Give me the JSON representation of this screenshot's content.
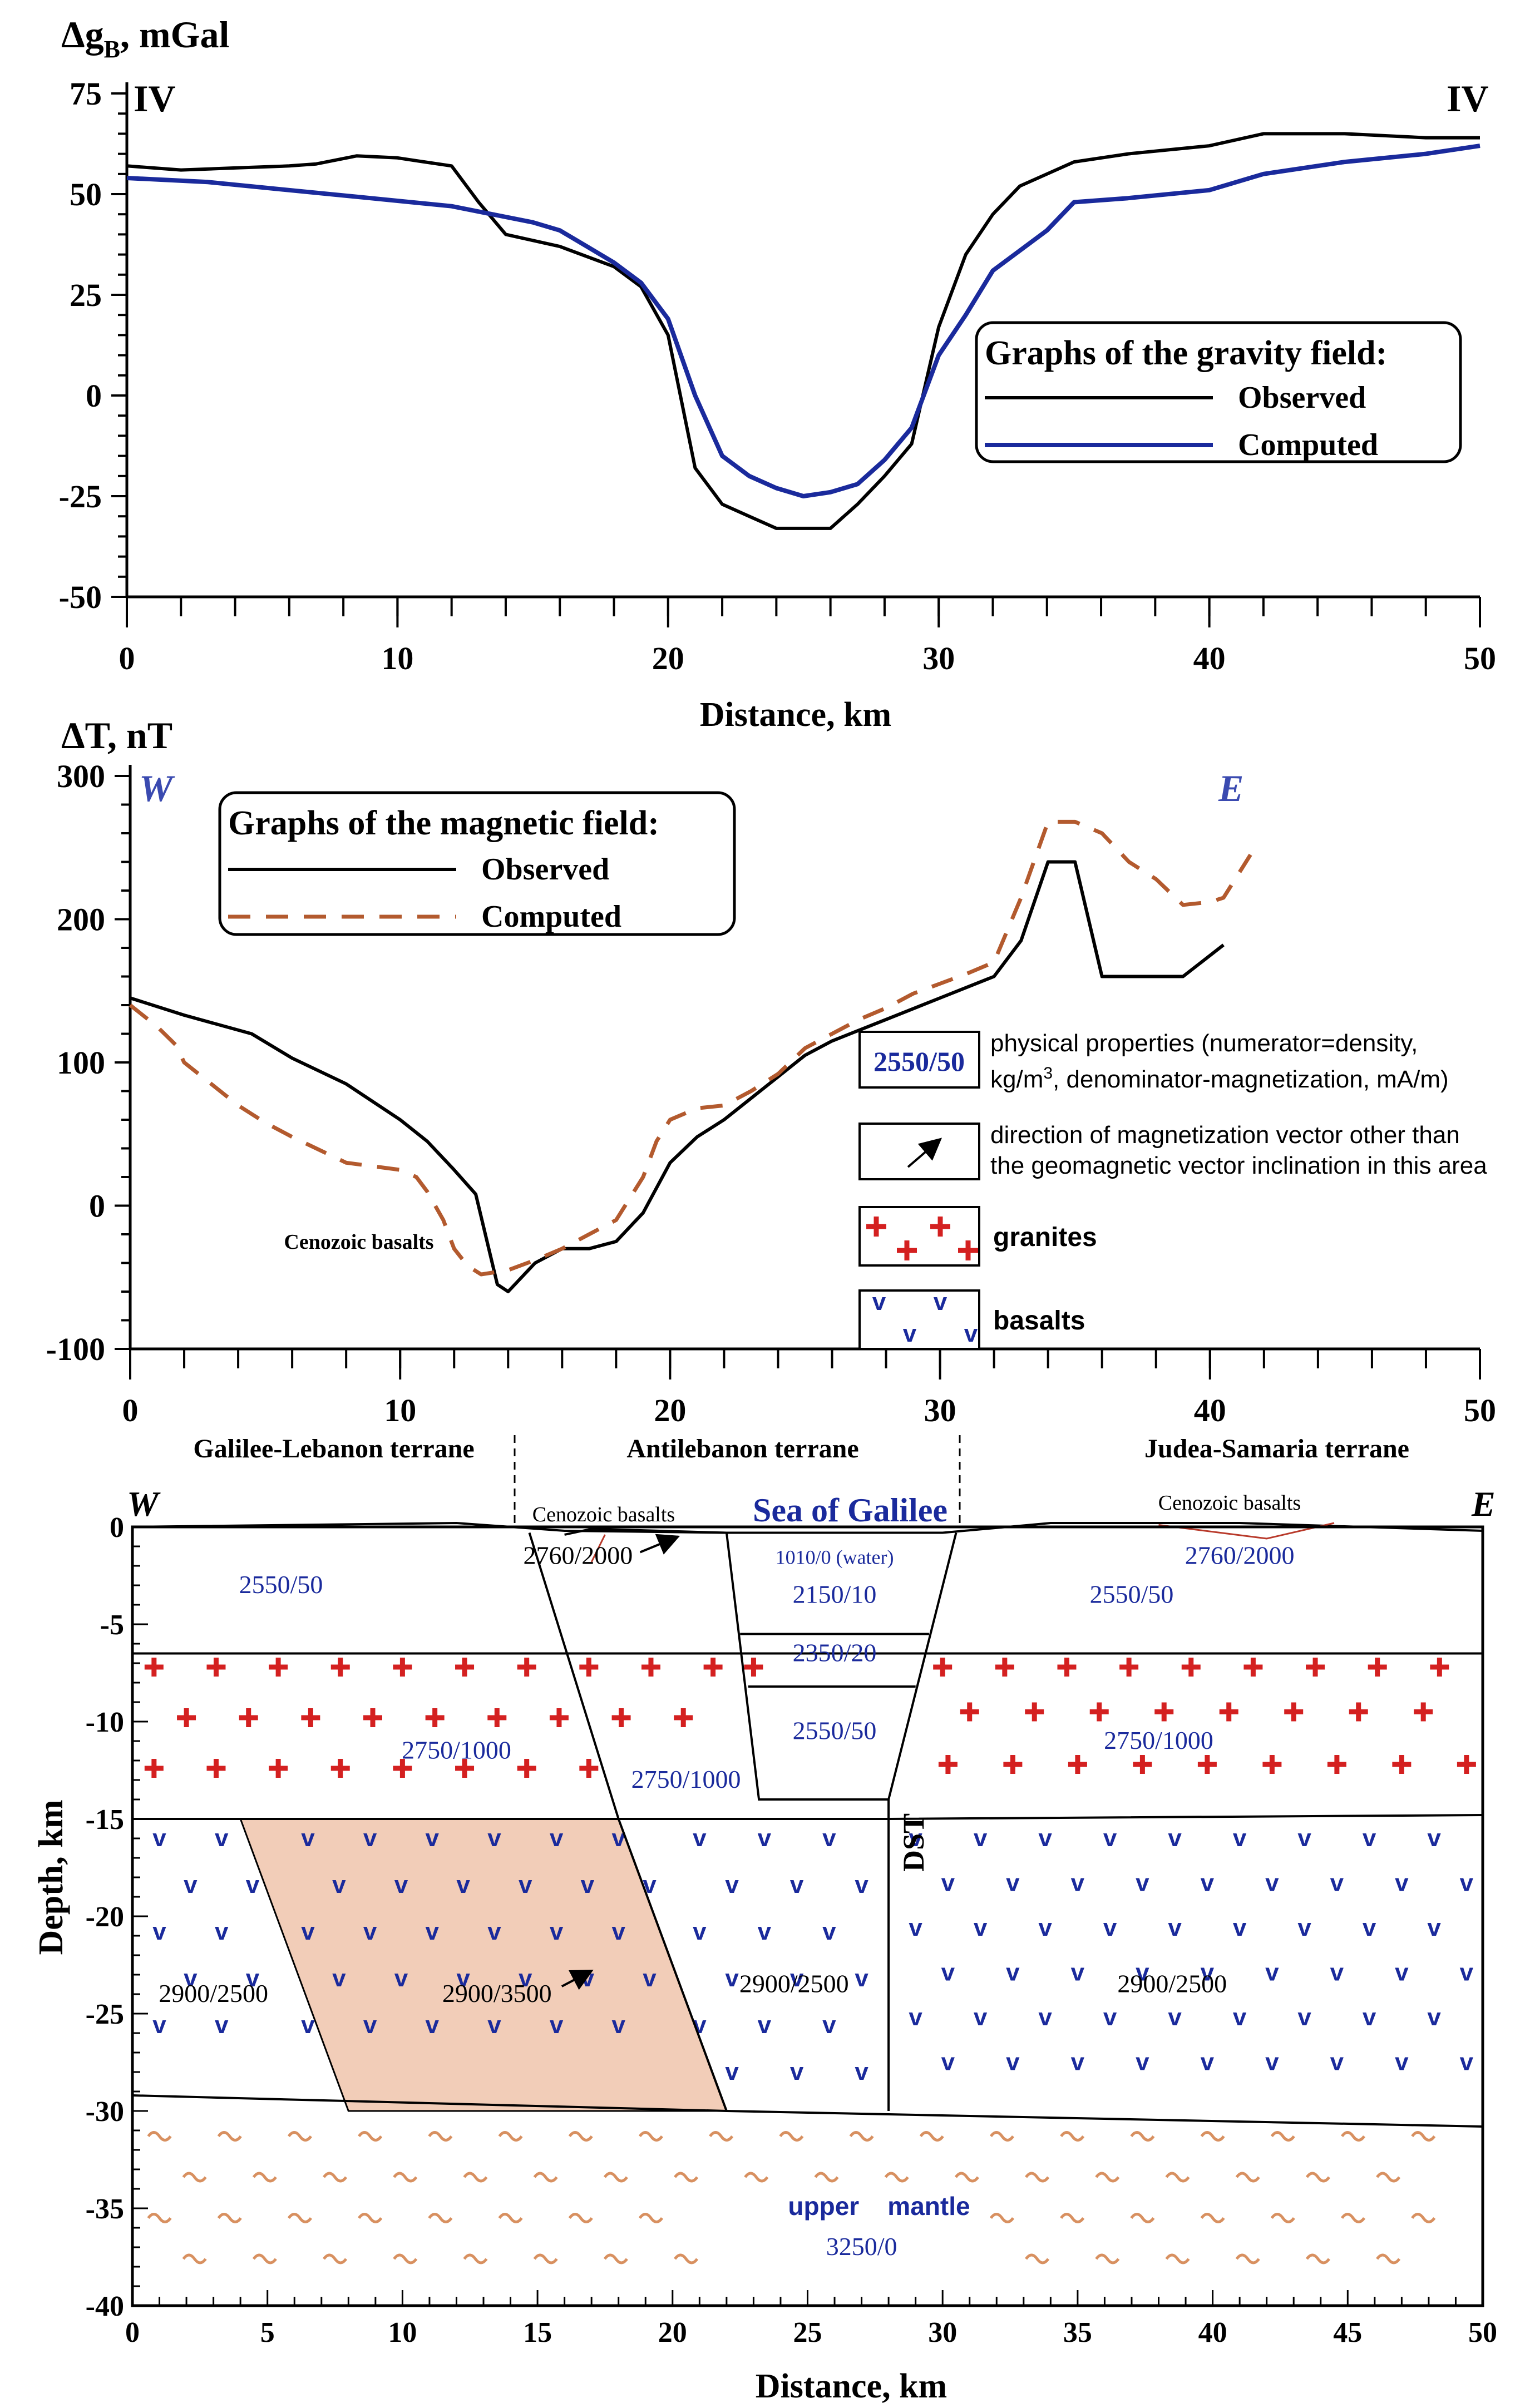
{
  "chart_data": [
    {
      "type": "line",
      "ylabel_main": "Δg",
      "ylabel_sub": "B",
      "ylabel_rest": ", mGal",
      "xlabel": "Distance, km",
      "corner_left": "IV",
      "corner_right": "IV",
      "xlim": [
        0,
        50
      ],
      "ylim": [
        -50,
        75
      ],
      "xticks": [
        0,
        10,
        20,
        30,
        40,
        50
      ],
      "yticks": [
        75,
        50,
        25,
        0,
        -25,
        -50
      ],
      "legend_title": "Graphs of the gravity field:",
      "legend_position": "right-middle",
      "series": [
        {
          "name": "Observed",
          "color": "#000000",
          "x": [
            0,
            2,
            4,
            6,
            7,
            8.5,
            10,
            11,
            12,
            13,
            14,
            16,
            18,
            19,
            20,
            21,
            22,
            23,
            24,
            25,
            26,
            27,
            28,
            29,
            30,
            31,
            32,
            33,
            35,
            37,
            40,
            42,
            45,
            48,
            50
          ],
          "y": [
            57,
            56,
            56.5,
            57,
            57.5,
            59.5,
            59,
            58,
            57,
            48,
            40,
            37,
            32,
            27,
            15,
            -18,
            -27,
            -30,
            -33,
            -33,
            -33,
            -27,
            -20,
            -12,
            17,
            35,
            45,
            52,
            58,
            60,
            62,
            65,
            65,
            64,
            64
          ]
        },
        {
          "name": "Computed",
          "color": "#1a2a9c",
          "x": [
            0,
            3,
            6,
            9,
            12,
            15,
            16,
            17,
            18,
            19,
            20,
            21,
            22,
            23,
            24,
            25,
            26,
            27,
            28,
            29,
            30,
            31,
            32,
            33,
            34,
            35,
            37,
            40,
            42,
            45,
            48,
            50
          ],
          "y": [
            54,
            53,
            51,
            49,
            47,
            43,
            41,
            37,
            33,
            28,
            19,
            0,
            -15,
            -20,
            -23,
            -25,
            -24,
            -22,
            -16,
            -8,
            10,
            20,
            31,
            36,
            41,
            48,
            49,
            51,
            55,
            58,
            60,
            62
          ]
        }
      ]
    },
    {
      "type": "line",
      "ylabel": "ΔT, nT",
      "xlabel": "",
      "corner_left": "W",
      "corner_right": "E",
      "xlim": [
        0,
        50
      ],
      "ylim": [
        -100,
        300
      ],
      "xticks": [
        0,
        10,
        20,
        30,
        40,
        50
      ],
      "yticks": [
        300,
        200,
        100,
        0,
        -100
      ],
      "legend_title": "Graphs of the magnetic field:",
      "legend_position": "top-left",
      "annotation": "Cenozoic basalts",
      "series": [
        {
          "name": "Observed",
          "color": "#000000",
          "x": [
            0,
            2,
            4.5,
            6,
            8,
            10,
            11,
            12,
            12.8,
            13.6,
            14,
            15,
            16,
            17,
            18,
            19,
            20,
            21,
            22,
            23,
            24,
            25,
            26,
            28,
            30,
            32,
            33,
            34,
            35,
            36,
            37,
            39,
            40.5
          ],
          "y": [
            145,
            133,
            120,
            103,
            85,
            60,
            45,
            25,
            8,
            -55,
            -60,
            -40,
            -30,
            -30,
            -25,
            -5,
            30,
            48,
            60,
            75,
            90,
            105,
            115,
            130,
            145,
            160,
            185,
            240,
            240,
            160,
            160,
            160,
            182
          ]
        },
        {
          "name": "Computed",
          "color": "#b35a2e",
          "x": [
            0,
            1,
            1.7,
            2,
            3,
            4,
            5,
            6,
            8,
            10,
            10.6,
            11,
            11.6,
            12,
            12.5,
            13,
            14,
            15,
            16,
            17,
            18,
            19,
            19.5,
            20,
            21,
            22,
            23,
            24,
            25,
            26,
            27,
            28,
            29,
            30,
            31,
            32,
            33,
            34,
            35,
            36,
            37,
            38,
            39,
            40,
            40.5,
            41.5
          ],
          "y": [
            140,
            125,
            112,
            100,
            85,
            70,
            58,
            48,
            30,
            25,
            20,
            10,
            -10,
            -30,
            -42,
            -48,
            -45,
            -38,
            -30,
            -20,
            -10,
            20,
            45,
            60,
            68,
            70,
            80,
            92,
            110,
            120,
            130,
            138,
            148,
            155,
            162,
            170,
            215,
            268,
            268,
            260,
            240,
            228,
            210,
            212,
            215,
            245
          ]
        }
      ]
    },
    {
      "type": "table",
      "chart_kind": "geological cross-section",
      "ylabel": "Depth, km",
      "xlabel": "Distance, km",
      "xlim": [
        0,
        50
      ],
      "ylim": [
        -40,
        0
      ],
      "xticks": [
        0,
        5,
        10,
        15,
        20,
        25,
        30,
        35,
        40,
        45,
        50
      ],
      "yticks": [
        0,
        -5,
        -10,
        -15,
        -20,
        -25,
        -30,
        -35,
        -40
      ],
      "corner_left": "W",
      "corner_right": "E",
      "terranes": [
        "Galilee-Lebanon terrane",
        "Antilebanon terrane",
        "Judea-Samaria terrane"
      ],
      "labels": {
        "sea": "Sea of Galilee",
        "basalts_left": "Cenozoic basalts",
        "basalts_right": "Cenozoic basalts",
        "dst": "DST",
        "mantle": "upper    mantle"
      },
      "bodies": [
        {
          "label": "2550/50",
          "x": 5.5,
          "y": -3,
          "color": "#1a2a9c"
        },
        {
          "label": "2760/2000",
          "x": 16.5,
          "y": -1.5,
          "color": "#000000"
        },
        {
          "label": "1010/0 (water)",
          "x": 26,
          "y": -1.5,
          "color": "#1a2a9c"
        },
        {
          "label": "2150/10",
          "x": 26,
          "y": -3.5,
          "color": "#1a2a9c"
        },
        {
          "label": "2350/20",
          "x": 26,
          "y": -6.5,
          "color": "#1a2a9c"
        },
        {
          "label": "2550/50",
          "x": 26,
          "y": -10.5,
          "color": "#1a2a9c"
        },
        {
          "label": "2550/50",
          "x": 37,
          "y": -3.5,
          "color": "#1a2a9c"
        },
        {
          "label": "2760/2000",
          "x": 41,
          "y": -1.5,
          "color": "#1a2a9c"
        },
        {
          "label": "2750/1000",
          "x": 12,
          "y": -11.5,
          "color": "#1a2a9c"
        },
        {
          "label": "2750/1000",
          "x": 20.5,
          "y": -13,
          "color": "#1a2a9c"
        },
        {
          "label": "2750/1000",
          "x": 38,
          "y": -11,
          "color": "#1a2a9c"
        },
        {
          "label": "2900/2500",
          "x": 3,
          "y": -24,
          "color": "#000000"
        },
        {
          "label": "2900/3500",
          "x": 13.5,
          "y": -24,
          "color": "#000000"
        },
        {
          "label": "2900/2500",
          "x": 24.5,
          "y": -23.5,
          "color": "#000000"
        },
        {
          "label": "2900/2500",
          "x": 38.5,
          "y": -23.5,
          "color": "#000000"
        },
        {
          "label": "3250/0",
          "x": 27,
          "y": -37,
          "color": "#1a2a9c"
        }
      ]
    }
  ],
  "legend": {
    "items": [
      {
        "box": "2550/50",
        "text_1": "physical properties (numerator=density,",
        "text_2a": "kg/m",
        "text_2sup": "3",
        "text_2b": ", denominator-magnetization, mA/m)"
      },
      {
        "box": "arrow",
        "text_1": "direction of magnetization vector other than",
        "text_2": "the geomagnetic vector inclination in this area"
      },
      {
        "box": "granites-pattern",
        "text_1": "granites"
      },
      {
        "box": "basalts-pattern",
        "text_1": "basalts"
      }
    ]
  },
  "colors": {
    "granite": "#d42020",
    "basalt": "#1a2a9c",
    "mantle": "#d89060",
    "hot_body": "#f2cdb8"
  }
}
